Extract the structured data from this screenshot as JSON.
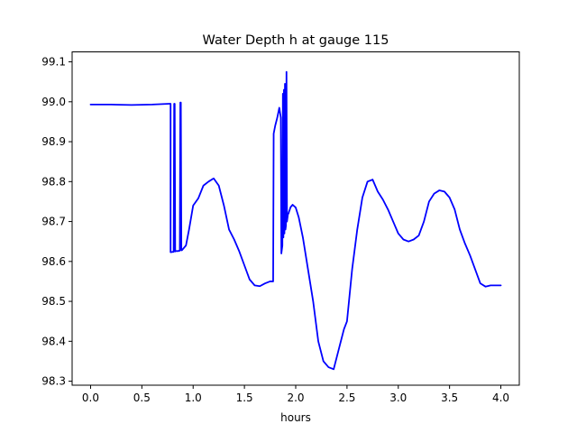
{
  "chart_data": {
    "type": "line",
    "title": "Water Depth h at gauge 115",
    "xlabel": "hours",
    "ylabel": "",
    "xlim": [
      -0.18,
      4.18
    ],
    "ylim": [
      98.29,
      99.125
    ],
    "xticks": [
      0.0,
      0.5,
      1.0,
      1.5,
      2.0,
      2.5,
      3.0,
      3.5,
      4.0
    ],
    "xtick_labels": [
      "0.0",
      "0.5",
      "1.0",
      "1.5",
      "2.0",
      "2.5",
      "3.0",
      "3.5",
      "4.0"
    ],
    "yticks": [
      98.3,
      98.4,
      98.5,
      98.6,
      98.7,
      98.8,
      98.9,
      99.0,
      99.1
    ],
    "ytick_labels": [
      "98.3",
      "98.4",
      "98.5",
      "98.6",
      "98.7",
      "98.8",
      "98.9",
      "99.0",
      "99.1"
    ],
    "grid": false,
    "legend": "none",
    "series": [
      {
        "color": "#0000ff",
        "x": [
          0.0,
          0.2,
          0.4,
          0.6,
          0.77,
          0.78,
          0.78,
          0.8,
          0.81,
          0.815,
          0.82,
          0.825,
          0.83,
          0.85,
          0.87,
          0.875,
          0.88,
          0.885,
          0.89,
          0.93,
          0.96,
          1.0,
          1.05,
          1.1,
          1.15,
          1.2,
          1.25,
          1.3,
          1.35,
          1.4,
          1.45,
          1.5,
          1.55,
          1.6,
          1.65,
          1.7,
          1.75,
          1.78,
          1.785,
          1.8,
          1.82,
          1.84,
          1.855,
          1.86,
          1.87,
          1.875,
          1.88,
          1.885,
          1.89,
          1.895,
          1.9,
          1.905,
          1.91,
          1.915,
          1.92,
          1.925,
          1.93,
          1.935,
          1.94,
          1.945,
          1.95,
          1.97,
          2.0,
          2.03,
          2.07,
          2.12,
          2.17,
          2.22,
          2.27,
          2.32,
          2.37,
          2.42,
          2.47,
          2.5,
          2.55,
          2.6,
          2.65,
          2.7,
          2.75,
          2.8,
          2.85,
          2.9,
          2.95,
          3.0,
          3.05,
          3.1,
          3.15,
          3.2,
          3.25,
          3.3,
          3.35,
          3.4,
          3.45,
          3.5,
          3.55,
          3.6,
          3.65,
          3.7,
          3.75,
          3.8,
          3.85,
          3.9,
          3.95,
          4.0
        ],
        "y": [
          98.993,
          98.993,
          98.992,
          98.993,
          98.995,
          98.995,
          98.623,
          98.624,
          98.624,
          98.995,
          98.995,
          98.625,
          98.626,
          98.626,
          98.627,
          98.998,
          98.998,
          98.628,
          98.628,
          98.64,
          98.68,
          98.74,
          98.758,
          98.79,
          98.8,
          98.808,
          98.79,
          98.74,
          98.68,
          98.655,
          98.625,
          98.59,
          98.555,
          98.54,
          98.538,
          98.545,
          98.55,
          98.55,
          98.92,
          98.94,
          98.96,
          98.985,
          98.96,
          98.62,
          98.64,
          99.02,
          98.66,
          99.03,
          98.67,
          99.045,
          98.68,
          98.69,
          99.075,
          98.7,
          98.71,
          98.72,
          98.72,
          98.725,
          98.728,
          98.732,
          98.736,
          98.742,
          98.735,
          98.71,
          98.66,
          98.58,
          98.5,
          98.4,
          98.35,
          98.335,
          98.33,
          98.38,
          98.43,
          98.45,
          98.58,
          98.68,
          98.76,
          98.8,
          98.805,
          98.775,
          98.755,
          98.73,
          98.7,
          98.67,
          98.655,
          98.65,
          98.655,
          98.665,
          98.7,
          98.75,
          98.77,
          98.778,
          98.775,
          98.76,
          98.73,
          98.68,
          98.645,
          98.615,
          98.58,
          98.545,
          98.537,
          98.54,
          98.54,
          98.54
        ]
      }
    ]
  }
}
